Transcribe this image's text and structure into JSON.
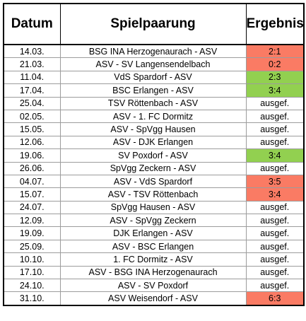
{
  "table": {
    "headers": {
      "date": "Datum",
      "match": "Spielpaarung",
      "result": "Ergebnis"
    },
    "colors": {
      "loss": "#fa7b64",
      "win": "#92d050"
    },
    "rows": [
      {
        "date": "14.03.",
        "match": "BSG INA Herzogenaurach - ASV",
        "result": "2:1",
        "status": "loss"
      },
      {
        "date": "21.03.",
        "match": "ASV - SV Langensendelbach",
        "result": "0:2",
        "status": "loss"
      },
      {
        "date": "11.04.",
        "match": "VdS Spardorf - ASV",
        "result": "2:3",
        "status": "win"
      },
      {
        "date": "17.04.",
        "match": "BSC Erlangen - ASV",
        "result": "3:4",
        "status": "win"
      },
      {
        "date": "25.04.",
        "match": "TSV Röttenbach - ASV",
        "result": "ausgef.",
        "status": "cancelled"
      },
      {
        "date": "02.05.",
        "match": "ASV - 1. FC Dormitz",
        "result": "ausgef.",
        "status": "cancelled"
      },
      {
        "date": "15.05.",
        "match": "ASV - SpVgg Hausen",
        "result": "ausgef.",
        "status": "cancelled"
      },
      {
        "date": "12.06.",
        "match": "ASV - DJK Erlangen",
        "result": "ausgef.",
        "status": "cancelled"
      },
      {
        "date": "19.06.",
        "match": "SV Poxdorf - ASV",
        "result": "3:4",
        "status": "win"
      },
      {
        "date": "26.06.",
        "match": "SpVgg Zeckern - ASV",
        "result": "ausgef.",
        "status": "cancelled"
      },
      {
        "date": "04.07.",
        "match": "ASV - VdS Spardorf",
        "result": "3:5",
        "status": "loss"
      },
      {
        "date": "15.07.",
        "match": "ASV - TSV Röttenbach",
        "result": "3:4",
        "status": "loss"
      },
      {
        "date": "24.07.",
        "match": "SpVgg Hausen - ASV",
        "result": "ausgef.",
        "status": "cancelled"
      },
      {
        "date": "12.09.",
        "match": "ASV - SpVgg Zeckern",
        "result": "ausgef.",
        "status": "cancelled"
      },
      {
        "date": "19.09.",
        "match": "DJK Erlangen - ASV",
        "result": "ausgef.",
        "status": "cancelled"
      },
      {
        "date": "25.09.",
        "match": "ASV - BSC Erlangen",
        "result": "ausgef.",
        "status": "cancelled"
      },
      {
        "date": "10.10.",
        "match": "1. FC Dormitz - ASV",
        "result": "ausgef.",
        "status": "cancelled"
      },
      {
        "date": "17.10.",
        "match": "ASV - BSG INA Herzogenaurach",
        "result": "ausgef.",
        "status": "cancelled"
      },
      {
        "date": "24.10.",
        "match": "ASV - SV Poxdorf",
        "result": "ausgef.",
        "status": "cancelled"
      },
      {
        "date": "31.10.",
        "match": "ASV Weisendorf - ASV",
        "result": "6:3",
        "status": "loss"
      }
    ]
  }
}
